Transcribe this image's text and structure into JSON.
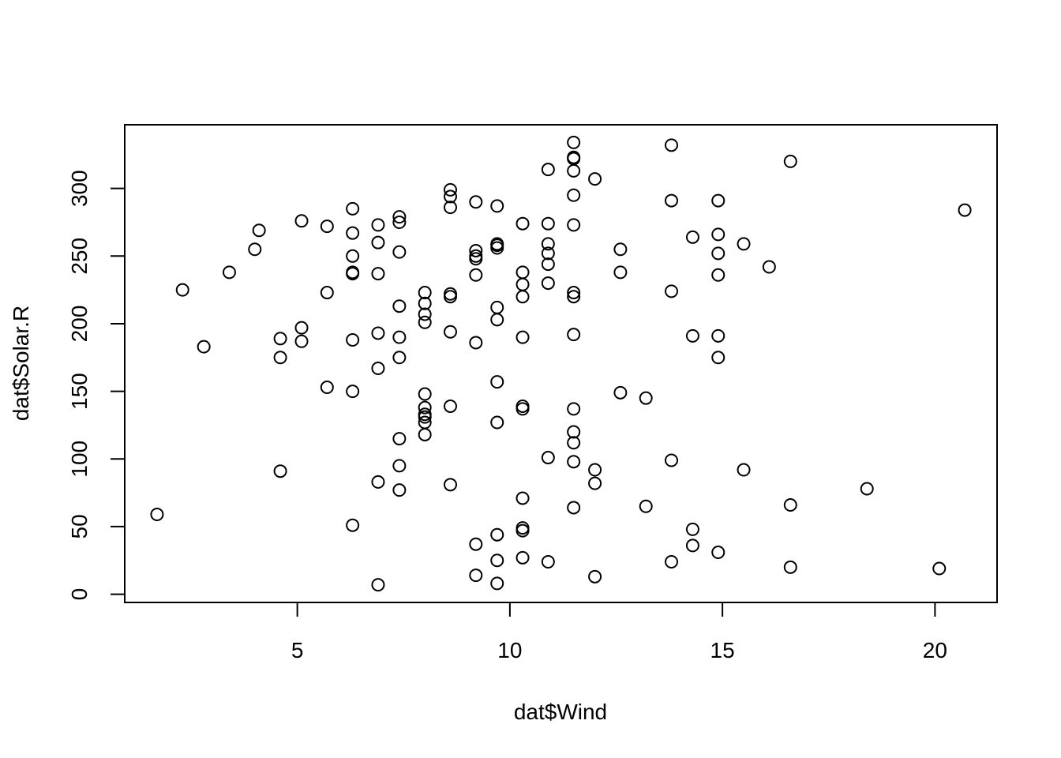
{
  "chart_data": {
    "type": "scatter",
    "title": "",
    "xlabel": "dat$Wind",
    "ylabel": "dat$Solar.R",
    "xlim": [
      1.7,
      20.7
    ],
    "ylim": [
      7,
      334
    ],
    "x_ticks": [
      5,
      10,
      15,
      20
    ],
    "y_ticks": [
      0,
      50,
      100,
      150,
      200,
      250,
      300
    ],
    "grid": false,
    "series": [
      {
        "marker": "open-circle",
        "color": "#000000",
        "points": [
          [
            1.7,
            59
          ],
          [
            2.3,
            225
          ],
          [
            2.8,
            183
          ],
          [
            3.4,
            238
          ],
          [
            4.0,
            255
          ],
          [
            4.1,
            269
          ],
          [
            4.6,
            189
          ],
          [
            4.6,
            175
          ],
          [
            4.6,
            91
          ],
          [
            5.1,
            276
          ],
          [
            5.1,
            197
          ],
          [
            5.1,
            187
          ],
          [
            5.7,
            272
          ],
          [
            5.7,
            223
          ],
          [
            5.7,
            153
          ],
          [
            6.3,
            285
          ],
          [
            6.3,
            267
          ],
          [
            6.3,
            250
          ],
          [
            6.3,
            238
          ],
          [
            6.3,
            237
          ],
          [
            6.3,
            188
          ],
          [
            6.3,
            150
          ],
          [
            6.3,
            51
          ],
          [
            6.9,
            273
          ],
          [
            6.9,
            260
          ],
          [
            6.9,
            237
          ],
          [
            6.9,
            193
          ],
          [
            6.9,
            167
          ],
          [
            6.9,
            83
          ],
          [
            6.9,
            7
          ],
          [
            7.4,
            279
          ],
          [
            7.4,
            275
          ],
          [
            7.4,
            253
          ],
          [
            7.4,
            213
          ],
          [
            7.4,
            190
          ],
          [
            7.4,
            175
          ],
          [
            7.4,
            115
          ],
          [
            7.4,
            95
          ],
          [
            7.4,
            77
          ],
          [
            8.0,
            223
          ],
          [
            8.0,
            215
          ],
          [
            8.0,
            207
          ],
          [
            8.0,
            201
          ],
          [
            8.0,
            148
          ],
          [
            8.0,
            138
          ],
          [
            8.0,
            133
          ],
          [
            8.0,
            131
          ],
          [
            8.0,
            127
          ],
          [
            8.0,
            118
          ],
          [
            8.6,
            299
          ],
          [
            8.6,
            294
          ],
          [
            8.6,
            286
          ],
          [
            8.6,
            222
          ],
          [
            8.6,
            220
          ],
          [
            8.6,
            194
          ],
          [
            8.6,
            139
          ],
          [
            8.6,
            81
          ],
          [
            9.2,
            290
          ],
          [
            9.2,
            254
          ],
          [
            9.2,
            250
          ],
          [
            9.2,
            248
          ],
          [
            9.2,
            236
          ],
          [
            9.2,
            186
          ],
          [
            9.2,
            37
          ],
          [
            9.2,
            14
          ],
          [
            9.7,
            287
          ],
          [
            9.7,
            259
          ],
          [
            9.7,
            258
          ],
          [
            9.7,
            256
          ],
          [
            9.7,
            212
          ],
          [
            9.7,
            203
          ],
          [
            9.7,
            157
          ],
          [
            9.7,
            127
          ],
          [
            9.7,
            44
          ],
          [
            9.7,
            25
          ],
          [
            9.7,
            8
          ],
          [
            10.3,
            274
          ],
          [
            10.3,
            238
          ],
          [
            10.3,
            229
          ],
          [
            10.3,
            220
          ],
          [
            10.3,
            190
          ],
          [
            10.3,
            139
          ],
          [
            10.3,
            137
          ],
          [
            10.3,
            71
          ],
          [
            10.3,
            49
          ],
          [
            10.3,
            47
          ],
          [
            10.3,
            27
          ],
          [
            10.9,
            314
          ],
          [
            10.9,
            274
          ],
          [
            10.9,
            259
          ],
          [
            10.9,
            252
          ],
          [
            10.9,
            244
          ],
          [
            10.9,
            230
          ],
          [
            10.9,
            101
          ],
          [
            10.9,
            24
          ],
          [
            11.5,
            334
          ],
          [
            11.5,
            323
          ],
          [
            11.5,
            322
          ],
          [
            11.5,
            313
          ],
          [
            11.5,
            295
          ],
          [
            11.5,
            273
          ],
          [
            11.5,
            223
          ],
          [
            11.5,
            220
          ],
          [
            11.5,
            192
          ],
          [
            11.5,
            137
          ],
          [
            11.5,
            120
          ],
          [
            11.5,
            112
          ],
          [
            11.5,
            98
          ],
          [
            11.5,
            64
          ],
          [
            12.0,
            307
          ],
          [
            12.0,
            92
          ],
          [
            12.0,
            82
          ],
          [
            12.0,
            13
          ],
          [
            12.6,
            255
          ],
          [
            12.6,
            238
          ],
          [
            12.6,
            149
          ],
          [
            13.2,
            145
          ],
          [
            13.2,
            65
          ],
          [
            13.8,
            332
          ],
          [
            13.8,
            291
          ],
          [
            13.8,
            224
          ],
          [
            13.8,
            99
          ],
          [
            13.8,
            24
          ],
          [
            14.3,
            264
          ],
          [
            14.3,
            191
          ],
          [
            14.3,
            48
          ],
          [
            14.3,
            36
          ],
          [
            14.9,
            291
          ],
          [
            14.9,
            266
          ],
          [
            14.9,
            252
          ],
          [
            14.9,
            236
          ],
          [
            14.9,
            191
          ],
          [
            14.9,
            175
          ],
          [
            14.9,
            31
          ],
          [
            15.5,
            259
          ],
          [
            15.5,
            92
          ],
          [
            16.1,
            242
          ],
          [
            16.6,
            320
          ],
          [
            16.6,
            66
          ],
          [
            16.6,
            20
          ],
          [
            18.4,
            78
          ],
          [
            20.1,
            19
          ],
          [
            20.7,
            284
          ]
        ]
      }
    ]
  }
}
